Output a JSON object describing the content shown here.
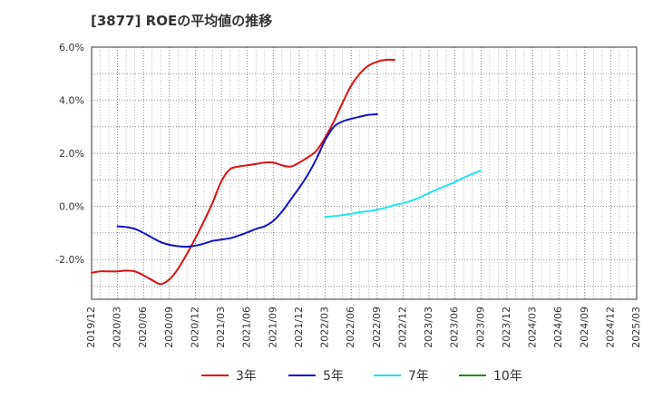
{
  "chart_data": {
    "type": "line",
    "title": "[3877]  ROEの平均値の推移",
    "xlabel": "",
    "ylabel": "",
    "ylim": [
      -3.5,
      6.0
    ],
    "grid": true,
    "legend_position": "bottom",
    "y_ticks": [
      {
        "value": 6.0,
        "label": "6.0%"
      },
      {
        "value": 4.0,
        "label": "4.0%"
      },
      {
        "value": 2.0,
        "label": "2.0%"
      },
      {
        "value": 0.0,
        "label": "0.0%"
      },
      {
        "value": -2.0,
        "label": "-2.0%"
      }
    ],
    "x_tick_labels": [
      "2019/12",
      "2020/03",
      "2020/06",
      "2020/09",
      "2020/12",
      "2021/03",
      "2021/06",
      "2021/09",
      "2021/12",
      "2022/03",
      "2022/06",
      "2022/09",
      "2022/12",
      "2023/03",
      "2023/06",
      "2023/09",
      "2023/12",
      "2024/03",
      "2024/06",
      "2024/09",
      "2024/12",
      "2025/03"
    ],
    "series": [
      {
        "name": "3年",
        "color": "#dd1111",
        "start_index": 0,
        "values": [
          -2.5,
          -2.45,
          -2.45,
          -2.45,
          -2.42,
          -2.45,
          -2.6,
          -2.78,
          -2.93,
          -2.75,
          -2.35,
          -1.8,
          -1.2,
          -0.55,
          0.15,
          0.95,
          1.4,
          1.5,
          1.55,
          1.6,
          1.65,
          1.65,
          1.55,
          1.5,
          1.65,
          1.85,
          2.1,
          2.6,
          3.2,
          3.9,
          4.55,
          5.0,
          5.3,
          5.45,
          5.52,
          5.52
        ]
      },
      {
        "name": "5年",
        "color": "#1111cc",
        "start_index": 1,
        "values": [
          -0.75,
          -0.78,
          -0.85,
          -1.0,
          -1.18,
          -1.35,
          -1.45,
          -1.5,
          -1.52,
          -1.48,
          -1.4,
          -1.3,
          -1.25,
          -1.2,
          -1.1,
          -0.98,
          -0.85,
          -0.75,
          -0.55,
          -0.2,
          0.25,
          0.7,
          1.2,
          1.8,
          2.5,
          3.0,
          3.2,
          3.3,
          3.38,
          3.45,
          3.47
        ]
      },
      {
        "name": "7年",
        "color": "#22e5f0",
        "start_index": 9,
        "values": [
          -0.4,
          -0.37,
          -0.33,
          -0.28,
          -0.22,
          -0.18,
          -0.12,
          -0.05,
          0.05,
          0.12,
          0.22,
          0.35,
          0.5,
          0.65,
          0.78,
          0.92,
          1.08,
          1.22,
          1.35
        ]
      },
      {
        "name": "10年",
        "color": "#228822",
        "start_index": 0,
        "values": []
      }
    ]
  }
}
